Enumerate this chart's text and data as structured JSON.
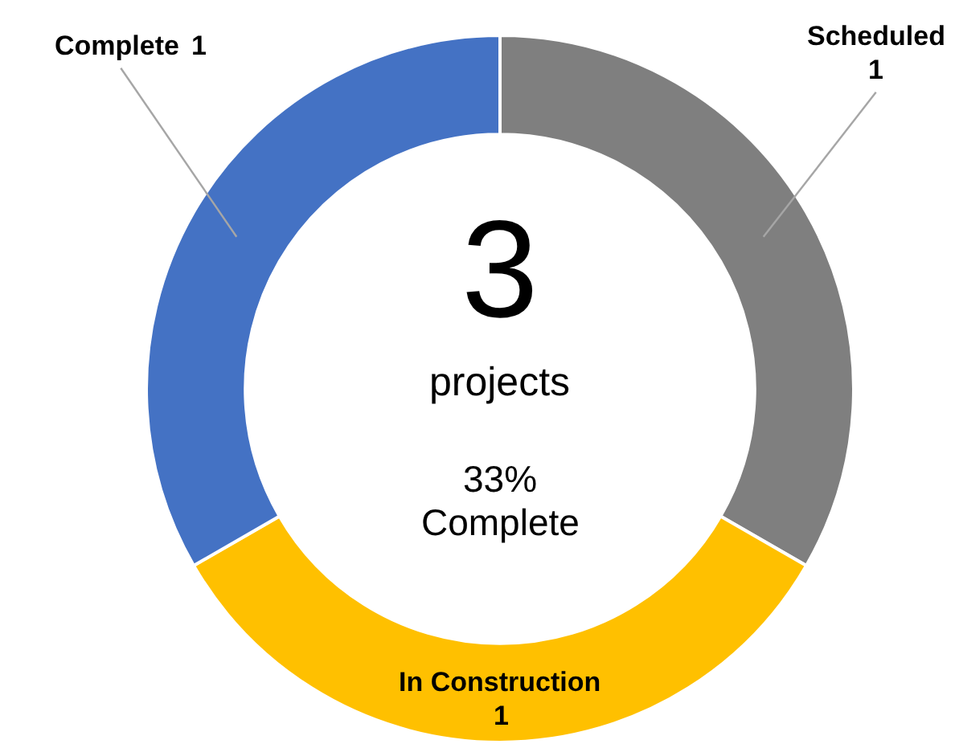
{
  "chart_data": {
    "type": "donut",
    "categories": [
      "Scheduled",
      "In Construction",
      "Complete"
    ],
    "values": [
      1,
      1,
      1
    ],
    "colors": [
      "#7f7f7f",
      "#ffc000",
      "#4472c4"
    ],
    "data_labels": true,
    "annotations": [
      "3",
      "projects",
      "33%",
      "Complete"
    ]
  }
}
